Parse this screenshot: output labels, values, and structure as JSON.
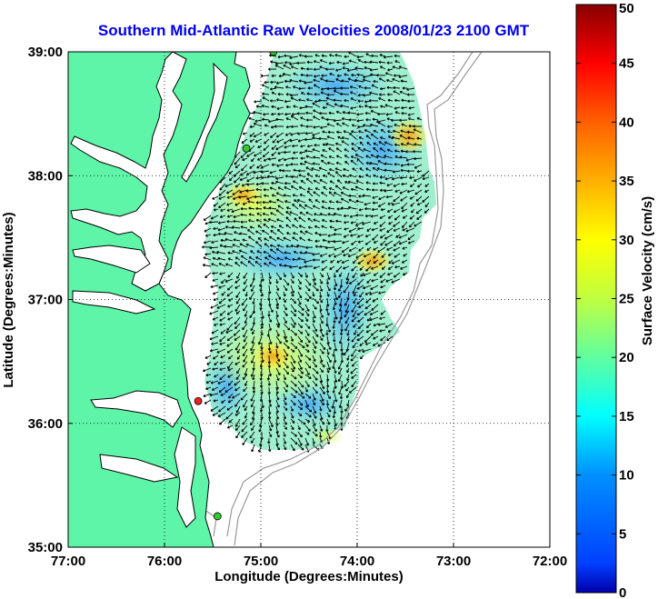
{
  "chart_data": {
    "type": "heatmap",
    "title": "Southern Mid-Atlantic Raw Velocities 2008/01/23 2100 GMT",
    "xlabel": "Longitude (Degrees:Minutes)",
    "ylabel": "Latitude (Degrees:Minutes)",
    "x_ticks": [
      "77:00",
      "76:00",
      "75:00",
      "74:00",
      "73:00",
      "72:00"
    ],
    "y_ticks": [
      "39:00",
      "38:00",
      "37:00",
      "36:00",
      "35:00"
    ],
    "xlim": [
      -77,
      -72
    ],
    "ylim": [
      35,
      39
    ],
    "grid": true,
    "colorbar": {
      "label": "Surface Velocity (cm/s)",
      "range": [
        0,
        50
      ],
      "ticks": [
        "0",
        "5",
        "10",
        "15",
        "20",
        "25",
        "30",
        "35",
        "40",
        "45",
        "50"
      ],
      "colormap": "jet"
    },
    "stations": [
      {
        "lon": -74.87,
        "lat": 39.0,
        "color": "#33cc33"
      },
      {
        "lon": -75.15,
        "lat": 38.22,
        "color": "#33cc33"
      },
      {
        "lon": -75.65,
        "lat": 36.18,
        "color": "#ee2222"
      },
      {
        "lon": -75.45,
        "lat": 35.25,
        "color": "#33cc33"
      }
    ],
    "colors": {
      "land": "#5ef5a8",
      "title": "#0000ee",
      "coast": "#000000",
      "isobath": "#999999"
    }
  }
}
